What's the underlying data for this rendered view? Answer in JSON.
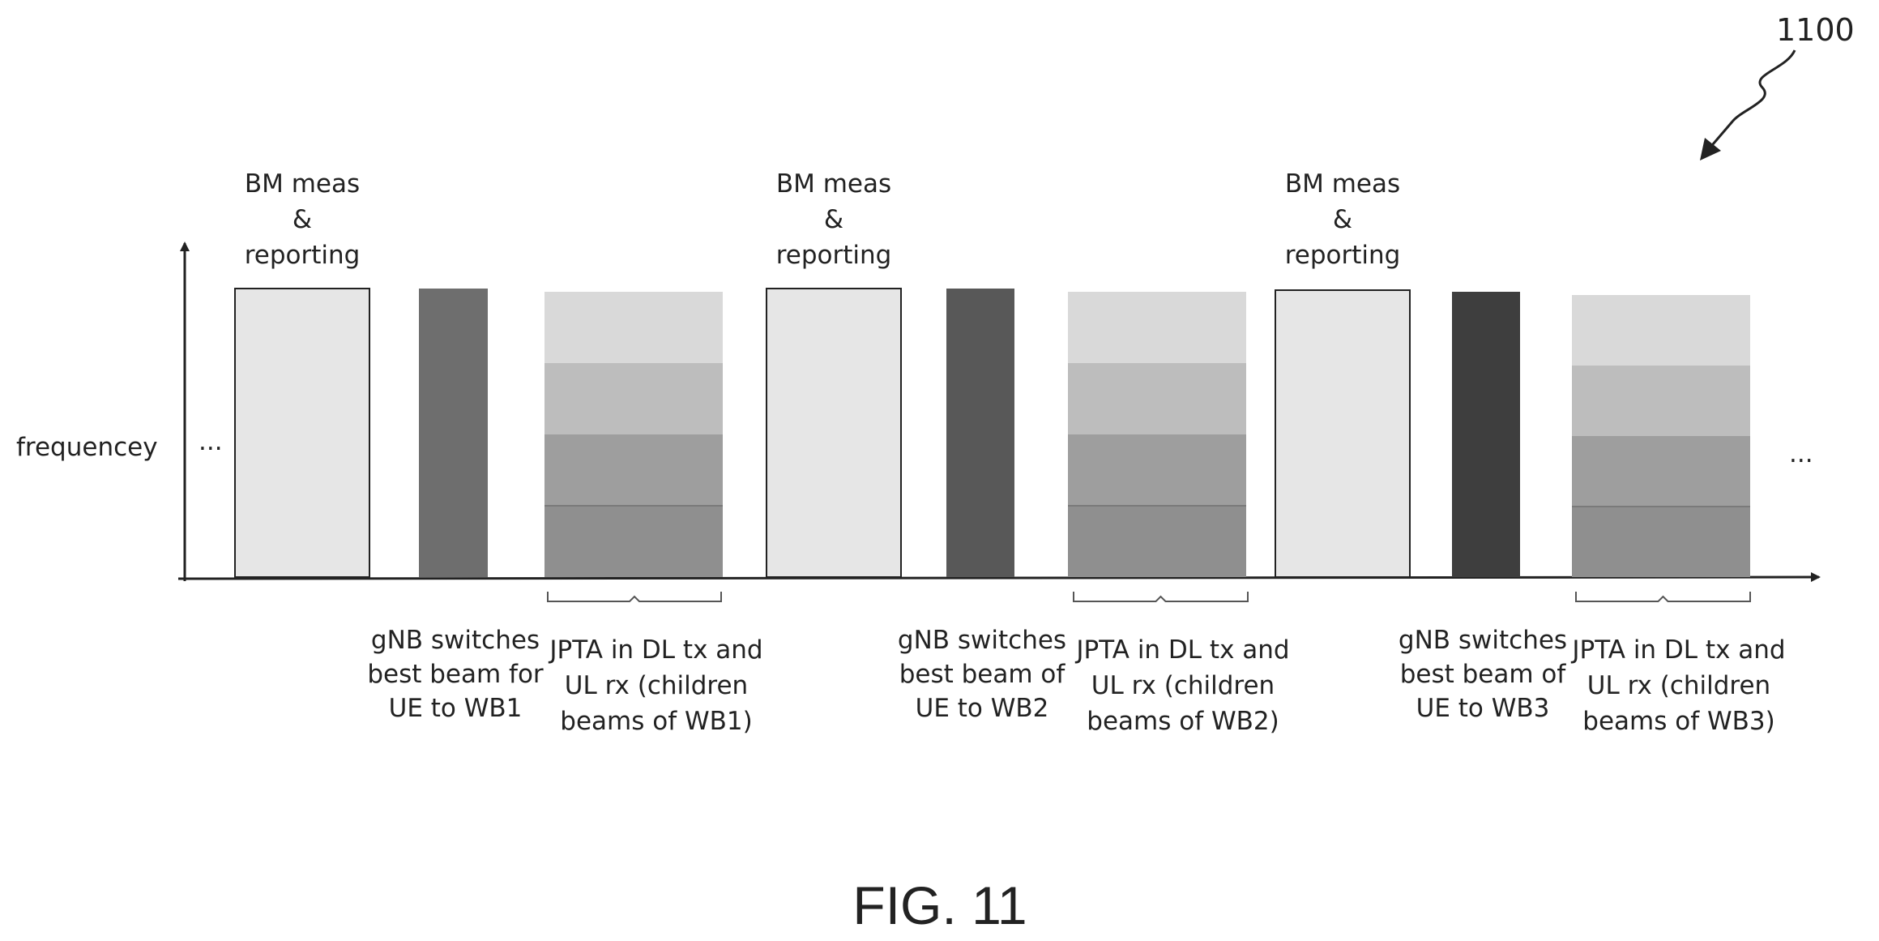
{
  "reference_numeral": "1100",
  "axis": {
    "y_label": "frequencey",
    "left_ellipsis": "...",
    "right_ellipsis": "..."
  },
  "cycles": [
    {
      "bm_lines": [
        "BM meas",
        "&",
        "reporting"
      ],
      "switch_lines": [
        "gNB switches",
        "best beam for",
        "UE to WB1"
      ],
      "jpta_lines": [
        "JPTA in DL tx and",
        "UL rx (children",
        "beams of WB1)"
      ],
      "switch_color": "#6e6e6e"
    },
    {
      "bm_lines": [
        "BM meas",
        "&",
        "reporting"
      ],
      "switch_lines": [
        "gNB switches",
        "best beam of",
        "UE to WB2"
      ],
      "jpta_lines": [
        "JPTA in DL tx and",
        "UL rx (children",
        "beams of WB2)"
      ],
      "switch_color": "#585858"
    },
    {
      "bm_lines": [
        "BM meas",
        "&",
        "reporting"
      ],
      "switch_lines": [
        "gNB switches",
        "best beam of",
        "UE to WB3"
      ],
      "jpta_lines": [
        "JPTA in DL tx and",
        "UL rx (children",
        "beams of WB3)"
      ],
      "switch_color": "#3e3e3e"
    }
  ],
  "colors": {
    "bm_fill": "#e6e6e6",
    "jpta_bands": [
      "#d9d9d9",
      "#bdbdbd",
      "#9e9e9e",
      "#8f8f8f"
    ],
    "line": "#222222"
  },
  "caption": "FIG. 11"
}
